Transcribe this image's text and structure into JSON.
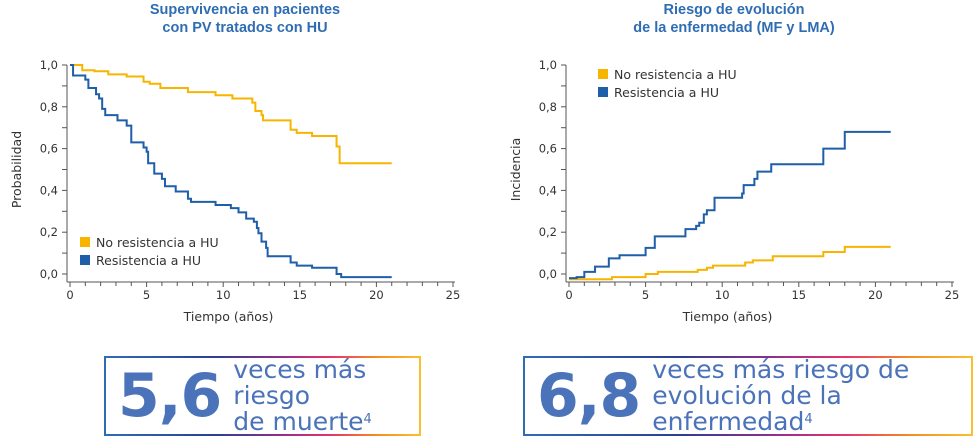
{
  "colors": {
    "title": "#2f6db3",
    "no_resistance": "#f7b500",
    "resistance": "#1f5ea8",
    "axis": "#555555",
    "tick_label": "#333333",
    "callout_text": "#4a73b9"
  },
  "chart_data": [
    {
      "type": "line",
      "subtype": "step (Kaplan-Meier)",
      "title": "Supervivencia en pacientes\ncon PV tratados con HU",
      "xlabel": "Tiempo (años)",
      "ylabel": "Probabilidad",
      "xlim": [
        0,
        25
      ],
      "ylim": [
        0.0,
        1.0
      ],
      "xticks": [
        "0",
        "5",
        "10",
        "15",
        "20",
        "25"
      ],
      "yticks": [
        "0,0",
        "0,2",
        "0,4",
        "0,6",
        "0,8",
        "1,0"
      ],
      "grid": false,
      "legend_position": "lower-left",
      "series": [
        {
          "name": "No resistencia a HU",
          "color": "#f7b500",
          "points": [
            [
              0,
              1.0
            ],
            [
              0.8,
              0.975
            ],
            [
              1.6,
              0.97
            ],
            [
              2.5,
              0.955
            ],
            [
              3.7,
              0.945
            ],
            [
              4.8,
              0.92
            ],
            [
              5.2,
              0.91
            ],
            [
              5.9,
              0.89
            ],
            [
              7.7,
              0.87
            ],
            [
              9.5,
              0.855
            ],
            [
              10.6,
              0.84
            ],
            [
              11.9,
              0.82
            ],
            [
              12.1,
              0.78
            ],
            [
              12.5,
              0.76
            ],
            [
              12.6,
              0.735
            ],
            [
              14.4,
              0.69
            ],
            [
              14.8,
              0.675
            ],
            [
              15.8,
              0.66
            ],
            [
              17.4,
              0.61
            ],
            [
              17.6,
              0.53
            ],
            [
              21.0,
              0.53
            ]
          ]
        },
        {
          "name": "Resistencia a HU",
          "color": "#1f5ea8",
          "points": [
            [
              0,
              1.0
            ],
            [
              0.2,
              0.95
            ],
            [
              1.0,
              0.93
            ],
            [
              1.2,
              0.89
            ],
            [
              1.7,
              0.86
            ],
            [
              1.9,
              0.84
            ],
            [
              2.1,
              0.79
            ],
            [
              2.3,
              0.76
            ],
            [
              3.1,
              0.735
            ],
            [
              3.7,
              0.71
            ],
            [
              4.0,
              0.63
            ],
            [
              4.8,
              0.605
            ],
            [
              5.0,
              0.585
            ],
            [
              5.1,
              0.53
            ],
            [
              5.5,
              0.48
            ],
            [
              6.0,
              0.455
            ],
            [
              6.2,
              0.42
            ],
            [
              6.9,
              0.395
            ],
            [
              7.7,
              0.36
            ],
            [
              7.9,
              0.345
            ],
            [
              9.5,
              0.33
            ],
            [
              10.5,
              0.315
            ],
            [
              11.0,
              0.295
            ],
            [
              11.5,
              0.265
            ],
            [
              12.0,
              0.25
            ],
            [
              12.2,
              0.22
            ],
            [
              12.3,
              0.195
            ],
            [
              12.5,
              0.155
            ],
            [
              12.8,
              0.125
            ],
            [
              12.9,
              0.085
            ],
            [
              14.4,
              0.055
            ],
            [
              14.8,
              0.04
            ],
            [
              15.8,
              0.03
            ],
            [
              17.4,
              0.0
            ],
            [
              17.7,
              -0.015
            ],
            [
              21.0,
              -0.015
            ]
          ]
        }
      ]
    },
    {
      "type": "line",
      "subtype": "step (cumulative incidence)",
      "title": "Riesgo de evolución\nde la enfermedad (MF y LMA)",
      "xlabel": "Tiempo (años)",
      "ylabel": "Incidencia",
      "xlim": [
        0,
        25
      ],
      "ylim": [
        0.0,
        1.0
      ],
      "xticks": [
        "0",
        "5",
        "10",
        "15",
        "20",
        "25"
      ],
      "yticks": [
        "0,0",
        "0,2",
        "0,4",
        "0,6",
        "0,8",
        "1,0"
      ],
      "grid": false,
      "legend_position": "upper-left",
      "series": [
        {
          "name": "No resistencia a HU",
          "color": "#f7b500",
          "points": [
            [
              0,
              -0.025
            ],
            [
              2.8,
              -0.015
            ],
            [
              5.0,
              0.0
            ],
            [
              5.8,
              0.01
            ],
            [
              8.4,
              0.02
            ],
            [
              9.0,
              0.03
            ],
            [
              9.4,
              0.04
            ],
            [
              11.5,
              0.055
            ],
            [
              12.0,
              0.065
            ],
            [
              13.3,
              0.085
            ],
            [
              16.6,
              0.105
            ],
            [
              18.0,
              0.13
            ],
            [
              21.0,
              0.13
            ]
          ]
        },
        {
          "name": "Resistencia a HU",
          "color": "#1f5ea8",
          "points": [
            [
              0,
              -0.02
            ],
            [
              0.5,
              -0.015
            ],
            [
              1.0,
              0.01
            ],
            [
              1.7,
              0.035
            ],
            [
              2.6,
              0.075
            ],
            [
              3.3,
              0.09
            ],
            [
              5.0,
              0.125
            ],
            [
              5.6,
              0.18
            ],
            [
              7.6,
              0.215
            ],
            [
              8.3,
              0.23
            ],
            [
              8.5,
              0.245
            ],
            [
              8.8,
              0.285
            ],
            [
              9.0,
              0.305
            ],
            [
              9.5,
              0.365
            ],
            [
              11.3,
              0.385
            ],
            [
              11.4,
              0.425
            ],
            [
              12.1,
              0.455
            ],
            [
              12.3,
              0.49
            ],
            [
              13.2,
              0.525
            ],
            [
              16.6,
              0.6
            ],
            [
              18.0,
              0.68
            ],
            [
              21.0,
              0.68
            ]
          ]
        }
      ]
    }
  ],
  "callouts": [
    {
      "number": "5,6",
      "line1": "veces más riesgo",
      "line2": "de muerte",
      "superscript": "4"
    },
    {
      "number": "6,8",
      "line1": "veces más riesgo de",
      "line2": "evolución de la enfermedad",
      "superscript": "4"
    }
  ]
}
